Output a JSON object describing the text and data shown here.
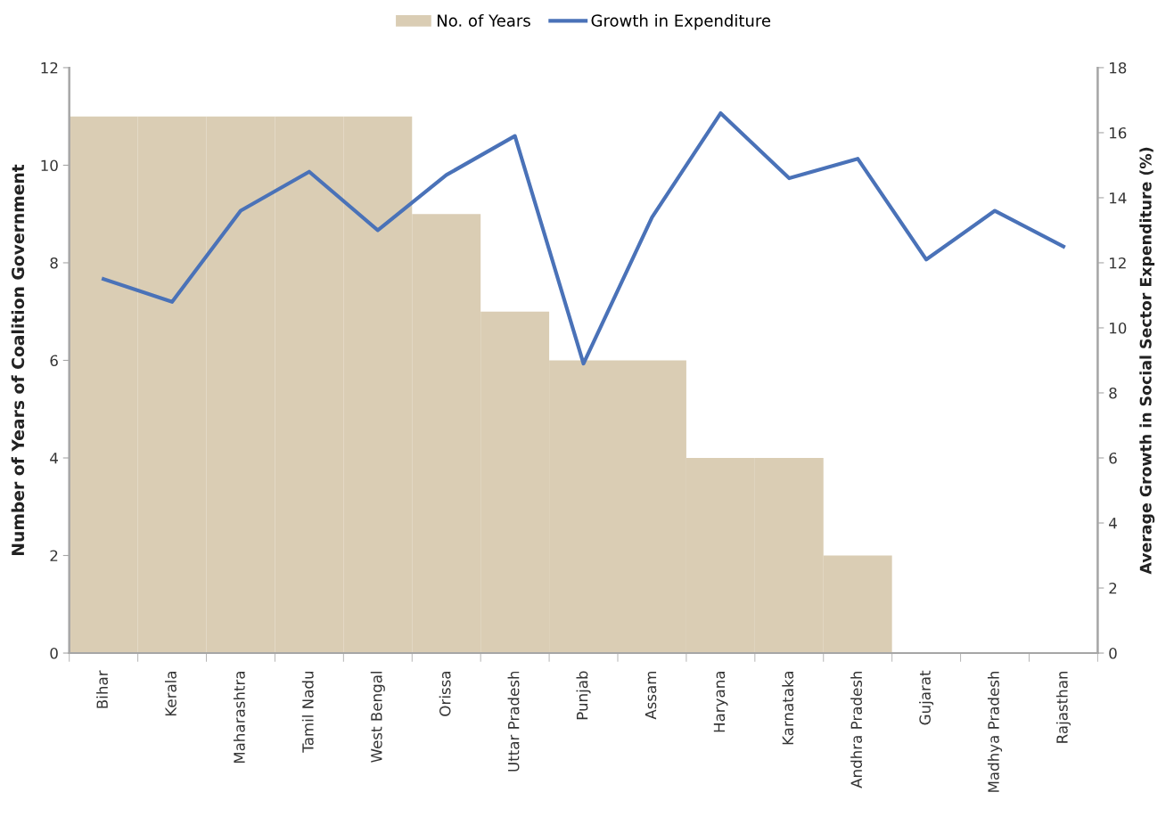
{
  "chart_data": {
    "type": "bar",
    "ylabel": "Number of Years of Coalition Government",
    "y2label": "Average Growth in Social Sector Expenditure (%)",
    "categories": [
      "Bihar",
      "Kerala",
      "Maharashtra",
      "Tamil Nadu",
      "West Bengal",
      "Orissa",
      "Uttar Pradesh",
      "Punjab",
      "Assam",
      "Haryana",
      "Karnataka",
      "Andhra Pradesh",
      "Gujarat",
      "Madhya Pradesh",
      "Rajasthan"
    ],
    "series": [
      {
        "name": "No. of Years",
        "color": "#dacdb4",
        "values": [
          11,
          11,
          11,
          11,
          11,
          9,
          7,
          6,
          6,
          4,
          4,
          2,
          0,
          0,
          0
        ]
      },
      {
        "name": "Growth in Expenditure",
        "type": "line",
        "axis": "y2",
        "color": "#4a72b8",
        "values": [
          11.5,
          10.8,
          13.6,
          14.8,
          13.0,
          14.7,
          15.9,
          8.9,
          13.4,
          16.6,
          14.6,
          15.2,
          12.1,
          13.6,
          12.5
        ]
      }
    ],
    "ylim": [
      0,
      12
    ],
    "yticks": [
      0,
      2,
      4,
      6,
      8,
      10,
      12
    ],
    "y2lim": [
      0,
      18
    ],
    "y2ticks": [
      0,
      2,
      4,
      6,
      8,
      10,
      12,
      14,
      16,
      18
    ],
    "legend": "top",
    "grid": false,
    "marker": "none",
    "line_style": "solid"
  }
}
